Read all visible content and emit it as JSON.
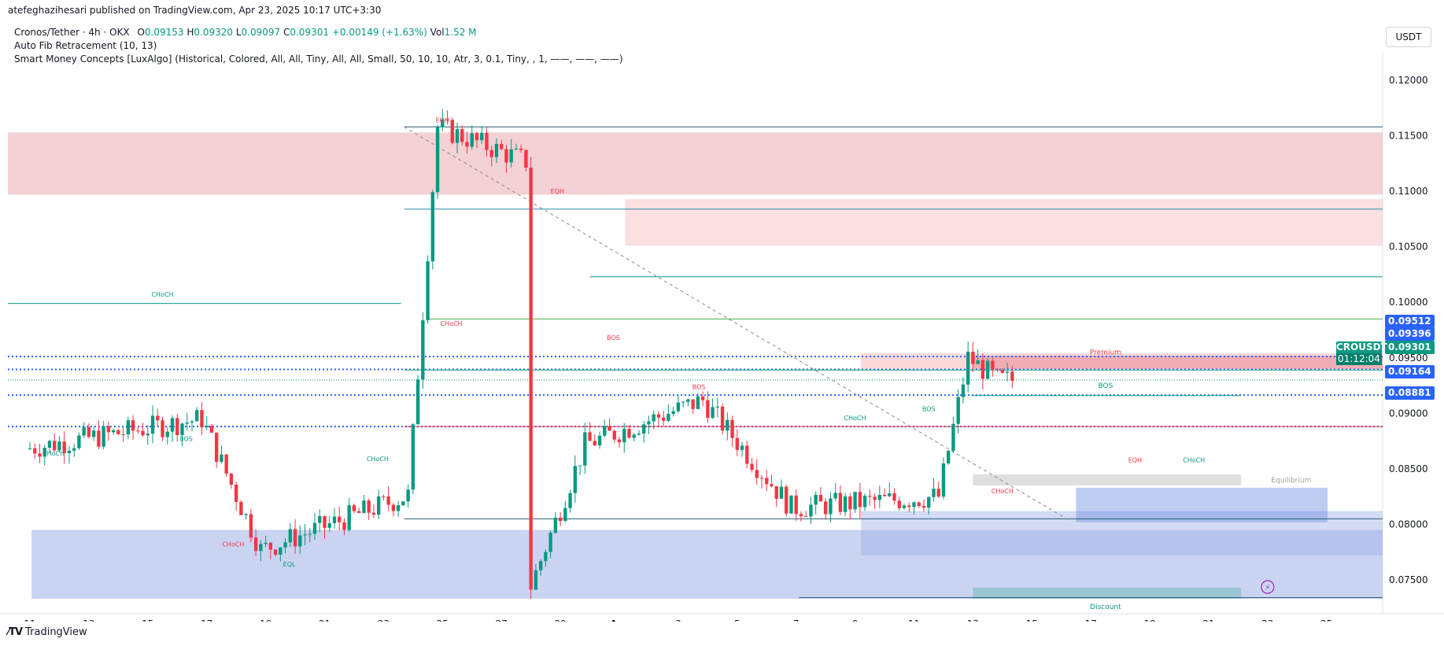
{
  "header": {
    "published_by": "atefeghazihesari published on TradingView.com, Apr 23, 2025 10:17 UTC+3:30"
  },
  "legend": {
    "symbol": "Cronos/Tether · 4h · OKX",
    "o_label": "O",
    "o": "0.09153",
    "h_label": "H",
    "h": "0.09320",
    "l_label": "L",
    "l": "0.09097",
    "c_label": "C",
    "c": "0.09301",
    "change": "+0.00149 (+1.63%)",
    "vol_label": "Vol",
    "vol": "1.52 M",
    "indicator1": "Auto Fib Retracement (10, 13)",
    "indicator2": "Smart Money Concepts [LuxAlgo] (Historical, Colored, All, All, Tiny, All, All, Small, 50, 10, 10, Atr, 3, 0.1, Tiny, , 1, ——, ——, ——)"
  },
  "currency": "USDT",
  "brand": "TradingView",
  "price_tags": {
    "p1": "0.09512",
    "p2": "0.09396",
    "p3": "0.09301",
    "p4": "0.09164",
    "p5": "0.08881",
    "symbol": "CROUSDT",
    "countdown": "01:12:04"
  },
  "colors": {
    "up": "#089981",
    "down": "#f23645",
    "bull_zone": "#b2c0ec",
    "bear_zone": "#f2b6ba",
    "fib_blue": "#2962ff"
  },
  "chart_data": {
    "type": "candlestick",
    "symbol": "CROUSDT",
    "timeframe": "4h",
    "ylim": [
      0.0728,
      0.1205
    ],
    "y_ticks": [
      "0.12000",
      "0.11500",
      "0.11000",
      "0.10500",
      "0.10000",
      "0.09500",
      "0.09000",
      "0.08500",
      "0.08000",
      "0.07500"
    ],
    "x_ticks": [
      "11",
      "13",
      "15",
      "17",
      "19",
      "21",
      "23",
      "25",
      "27",
      "29",
      "Apr",
      "3",
      "5",
      "7",
      "9",
      "11",
      "13",
      "15",
      "17",
      "19",
      "21",
      "23",
      "25"
    ],
    "key_points": [
      {
        "date": "Mar 11",
        "price": 0.0868
      },
      {
        "date": "Mar 17",
        "price": 0.0895
      },
      {
        "date": "Mar 19",
        "price": 0.0777
      },
      {
        "date": "Mar 24",
        "price": 0.0826
      },
      {
        "date": "Mar 25",
        "price": 0.1158
      },
      {
        "date": "Mar 28",
        "price": 0.1127
      },
      {
        "date": "Apr 1",
        "price": 0.1085
      },
      {
        "date": "Apr 3",
        "price": 0.096
      },
      {
        "date": "Apr 7",
        "price": 0.0733
      },
      {
        "date": "Apr 9",
        "price": 0.0872
      },
      {
        "date": "Apr 13",
        "price": 0.0912
      },
      {
        "date": "Apr 16",
        "price": 0.0815
      },
      {
        "date": "Apr 21",
        "price": 0.0825
      },
      {
        "date": "Apr 22",
        "price": 0.095
      },
      {
        "date": "Apr 23",
        "price": 0.093
      }
    ],
    "annotations": [
      "CHoCH",
      "BOS",
      "EQH",
      "EQL",
      "Premium",
      "Equilibrium",
      "Discount"
    ],
    "levels": {
      "premium_top": 0.0951,
      "premium_bottom": 0.094,
      "equilibrium": 0.0839,
      "discount_bottom": 0.0733,
      "fib_lines": [
        0.09512,
        0.09396,
        0.09164,
        0.08881
      ]
    }
  }
}
